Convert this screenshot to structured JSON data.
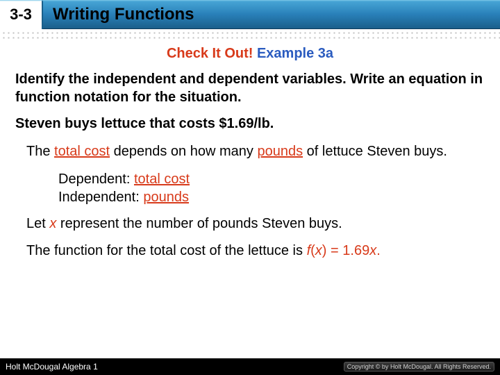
{
  "header": {
    "section_number": "3-3",
    "title": "Writing Functions"
  },
  "check": {
    "label": "Check It Out!",
    "example": "Example 3a"
  },
  "prompt": "Identify the independent and dependent variables. Write an equation in function notation for the situation.",
  "scenario": "Steven buys lettuce that costs $1.69/lb.",
  "explain": {
    "pre1": "The ",
    "u1": "total cost",
    "mid1": " depends on how many ",
    "u2": "pounds",
    "post1": " of lettuce Steven buys."
  },
  "deps": {
    "dep_label": "Dependent: ",
    "dep_val": "total cost",
    "ind_label": "Independent: ",
    "ind_val": "pounds"
  },
  "let": {
    "pre": "Let ",
    "var": "x",
    "post": " represent the number of pounds Steven buys."
  },
  "fn": {
    "pre": "The function for the total cost of the lettuce is ",
    "f": "f",
    "paren_open": "(",
    "x": "x",
    "paren_close": ")",
    "eq": " = 1.69",
    "x2": "x",
    "period": "."
  },
  "footer": {
    "left": "Holt McDougal Algebra 1",
    "right": "Copyright © by Holt McDougal. All Rights Reserved."
  },
  "colors": {
    "red": "#d83a1a",
    "blue": "#2a5bbf",
    "header_grad_top": "#4aa8d8",
    "header_grad_bot": "#1a5f8a"
  }
}
